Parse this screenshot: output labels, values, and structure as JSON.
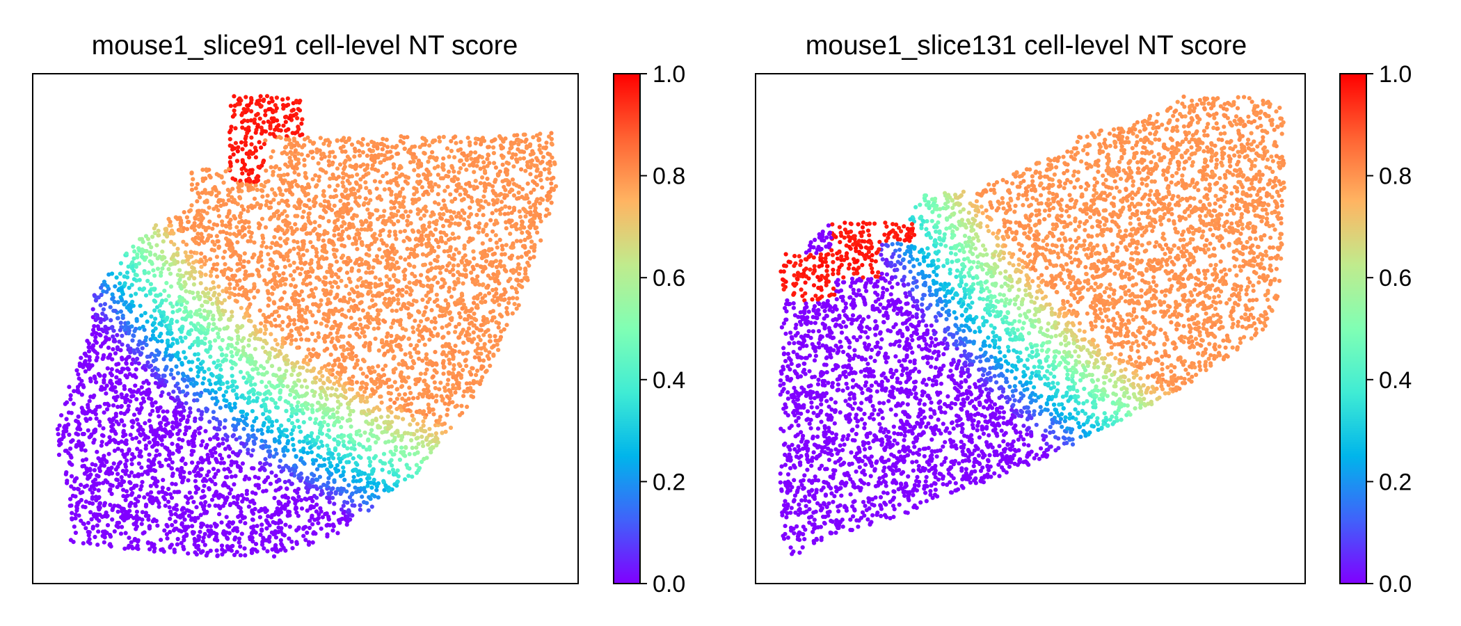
{
  "colormap": {
    "name": "rainbow",
    "stops": [
      "#8000ff",
      "#4062fa",
      "#00b5eb",
      "#40ecd4",
      "#80ffb4",
      "#c0eb8d",
      "#ffb462",
      "#ff6232",
      "#ff0000"
    ]
  },
  "chart_data": [
    {
      "type": "scatter",
      "title": "mouse1_slice91 cell-level NT score",
      "xlabel": "",
      "ylabel": "",
      "x_ticks": [],
      "y_ticks": [],
      "color_by": "NT score",
      "colorbar": {
        "range": [
          0,
          1
        ],
        "ticks": [
          0.0,
          0.2,
          0.4,
          0.6,
          0.8,
          1.0
        ],
        "tick_labels": [
          "0.0",
          "0.2",
          "0.4",
          "0.6",
          "0.8",
          "1.0"
        ]
      },
      "n_points_approx": 6500
    },
    {
      "type": "scatter",
      "title": "mouse1_slice131 cell-level NT score",
      "xlabel": "",
      "ylabel": "",
      "x_ticks": [],
      "y_ticks": [],
      "color_by": "NT score",
      "colorbar": {
        "range": [
          0,
          1
        ],
        "ticks": [
          0.0,
          0.2,
          0.4,
          0.6,
          0.8,
          1.0
        ],
        "tick_labels": [
          "0.0",
          "0.2",
          "0.4",
          "0.6",
          "0.8",
          "1.0"
        ]
      },
      "n_points_approx": 6000
    }
  ]
}
